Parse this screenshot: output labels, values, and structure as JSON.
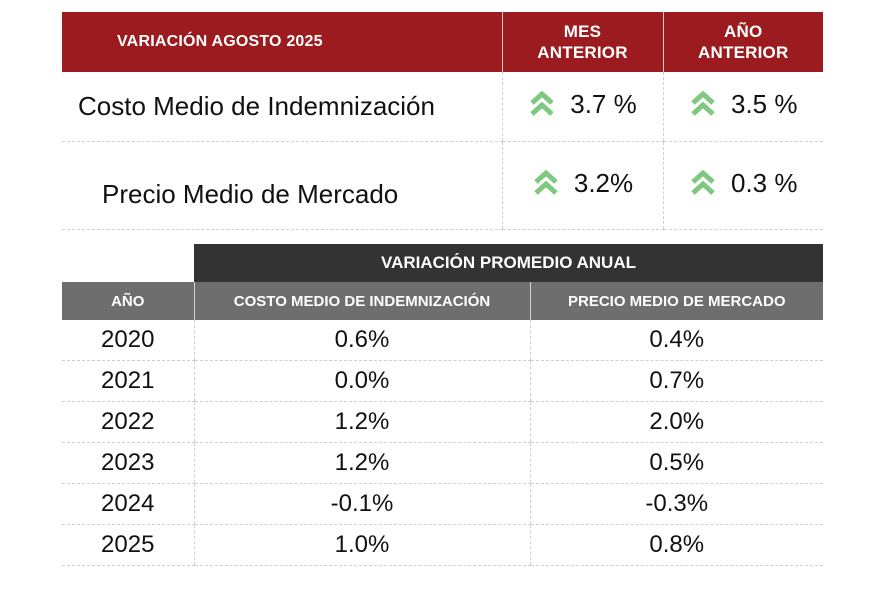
{
  "summary": {
    "title": "VARIACIÓN AGOSTO 2025",
    "col_month": [
      "MES",
      "ANTERIOR"
    ],
    "col_year": [
      "AÑO",
      "ANTERIOR"
    ],
    "rows": [
      {
        "label": "Costo Medio de Indemnización",
        "month": "3.7 %",
        "year": "3.5 %",
        "icon": "double-chevron-up-icon"
      },
      {
        "label": "Precio Medio de Mercado",
        "month": "3.2%",
        "year": "0.3 %",
        "icon": "double-chevron-up-icon"
      }
    ],
    "icon_color": "#7fc87f"
  },
  "annual": {
    "group_header": "VARIACIÓN PROMEDIO ANUAL",
    "columns": [
      "AÑO",
      "COSTO MEDIO DE INDEMNIZACIÓN",
      "PRECIO MEDIO DE MERCADO"
    ],
    "rows": [
      [
        "2020",
        "0.6%",
        "0.4%"
      ],
      [
        "2021",
        "0.0%",
        "0.7%"
      ],
      [
        "2022",
        "1.2%",
        "2.0%"
      ],
      [
        "2023",
        "1.2%",
        "0.5%"
      ],
      [
        "2024",
        "-0.1%",
        "-0.3%"
      ],
      [
        "2025",
        "1.0%",
        "0.8%"
      ]
    ]
  },
  "colors": {
    "header_red": "#9b1b1f",
    "header_dark": "#333333",
    "header_gray": "#6e6e6e"
  }
}
